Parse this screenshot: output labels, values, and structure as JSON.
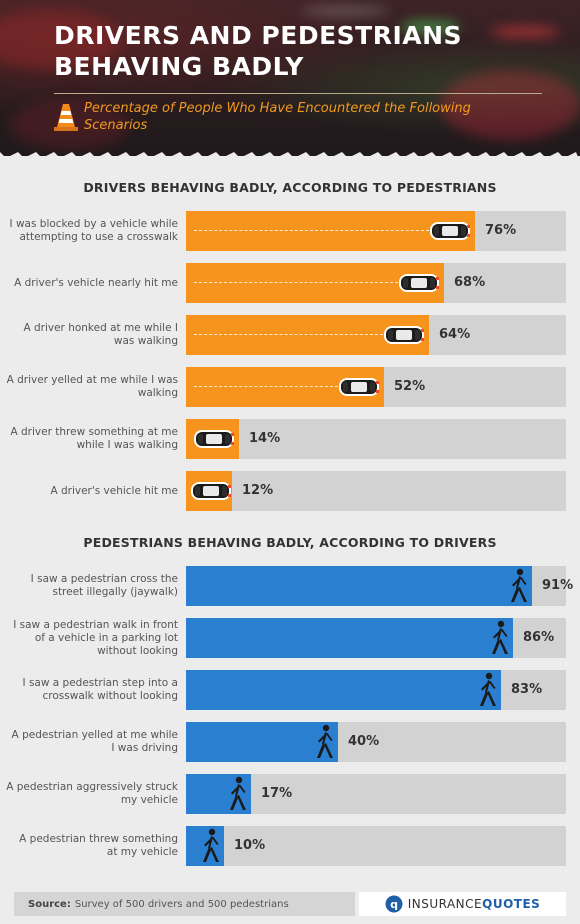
{
  "header": {
    "title": "DRIVERS AND PEDESTRIANS BEHAVING BADLY",
    "subtitle": "Percentage of People Who Have Encountered the Following Scenarios",
    "cone_icon": "traffic-cone-icon"
  },
  "colors": {
    "drivers_bar": "#f7941e",
    "pedestrians_bar": "#2a7fd0",
    "track": "#d2d2d2",
    "subtitle": "#f39a1e"
  },
  "chart_data": [
    {
      "type": "bar",
      "orientation": "horizontal",
      "title": "DRIVERS BEHAVING BADLY, ACCORDING TO PEDESTRIANS",
      "unit": "%",
      "xlim": [
        0,
        100
      ],
      "marker_icon": "car-icon",
      "categories": [
        "I was blocked by a vehicle while attempting to use a crosswalk",
        "A driver's vehicle nearly hit me",
        "A driver honked at me while I was walking",
        "A driver yelled at me while I was walking",
        "A driver threw something at me while I was walking",
        "A driver's vehicle hit me"
      ],
      "values": [
        76,
        68,
        64,
        52,
        14,
        12
      ],
      "data_labels": [
        "76%",
        "68%",
        "64%",
        "52%",
        "14%",
        "12%"
      ]
    },
    {
      "type": "bar",
      "orientation": "horizontal",
      "title": "PEDESTRIANS BEHAVING BADLY, ACCORDING TO DRIVERS",
      "unit": "%",
      "xlim": [
        0,
        100
      ],
      "marker_icon": "walking-pedestrian-icon",
      "categories": [
        "I saw a pedestrian cross the street illegally (jaywalk)",
        "I saw a pedestrian walk in front of a vehicle in a parking lot without looking",
        "I saw a pedestrian step into a crosswalk without looking",
        "A pedestrian yelled at me while I was driving",
        "A pedestrian aggressively struck my vehicle",
        "A pedestrian threw something at my vehicle"
      ],
      "values": [
        91,
        86,
        83,
        40,
        17,
        10
      ],
      "data_labels": [
        "91%",
        "86%",
        "83%",
        "40%",
        "17%",
        "10%"
      ]
    }
  ],
  "footer": {
    "source_label": "Source:",
    "source_text": "Survey of 500 drivers and 500 pedestrians",
    "logo_part1": "INSURANCE",
    "logo_part2": "QUOTES",
    "logo_icon": "insurancequotes-logo-icon"
  }
}
